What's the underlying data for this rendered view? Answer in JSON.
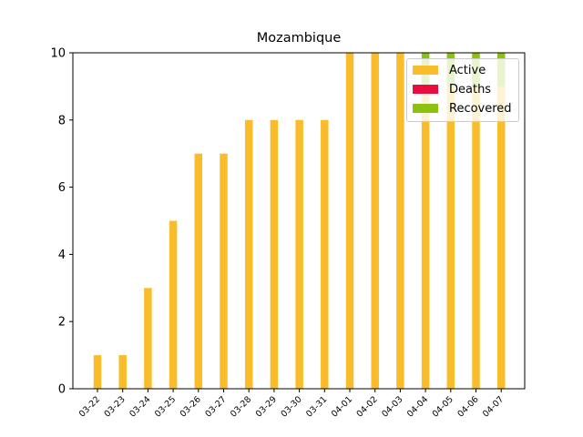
{
  "chart_data": {
    "type": "bar",
    "title": "Mozambique",
    "xlabel": "",
    "ylabel": "",
    "categories": [
      "03-22",
      "03-23",
      "03-24",
      "03-25",
      "03-26",
      "03-27",
      "03-28",
      "03-29",
      "03-30",
      "03-31",
      "04-01",
      "04-02",
      "04-03",
      "04-04",
      "04-05",
      "04-06",
      "04-07"
    ],
    "ylim": [
      0,
      10
    ],
    "yticks": [
      0,
      2,
      4,
      6,
      8,
      10
    ],
    "stacked": true,
    "grid": false,
    "legend_position": "top-right",
    "series": [
      {
        "name": "Active",
        "color": "#f9bd2b",
        "values": [
          1,
          1,
          3,
          5,
          7,
          7,
          8,
          8,
          8,
          8,
          10,
          10,
          10,
          9,
          9,
          9,
          9
        ]
      },
      {
        "name": "Deaths",
        "color": "#ea0b3f",
        "values": [
          0,
          0,
          0,
          0,
          0,
          0,
          0,
          0,
          0,
          0,
          0,
          0,
          0,
          0,
          0,
          0,
          0
        ]
      },
      {
        "name": "Recovered",
        "color": "#8bc20f",
        "values": [
          0,
          0,
          0,
          0,
          0,
          0,
          0,
          0,
          0,
          0,
          0,
          0,
          0,
          1,
          1,
          1,
          1
        ]
      }
    ]
  }
}
